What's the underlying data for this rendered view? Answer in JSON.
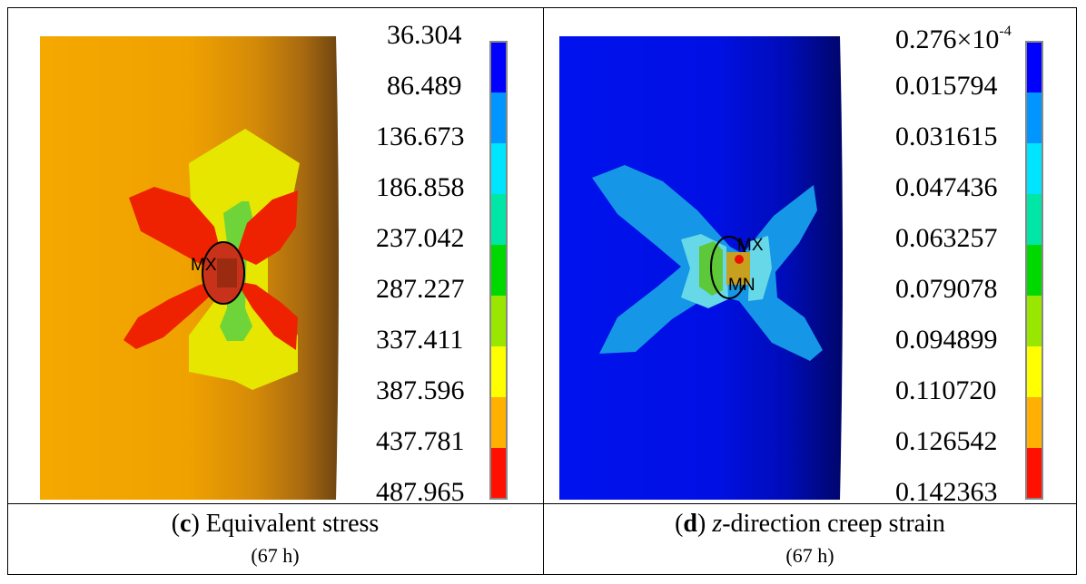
{
  "panels": [
    {
      "legend": [
        "36.304",
        "86.489",
        "136.673",
        "186.858",
        "237.042",
        "287.227",
        "337.411",
        "387.596",
        "437.781",
        "487.965"
      ],
      "legend_colors": [
        "#0000ff",
        "#0095ff",
        "#00e5ff",
        "#00e6a6",
        "#00d900",
        "#99e600",
        "#ffff00",
        "#ffb000",
        "#ff1000"
      ],
      "markers": {
        "max": "MX"
      },
      "caption_letter": "c",
      "caption_text": "Equivalent stress",
      "caption_time": "(67 h)"
    },
    {
      "legend_first_mantissa": "0.276",
      "legend_first_times": "×10",
      "legend_first_exp": "-4",
      "legend": [
        "0.015794",
        "0.031615",
        "0.047436",
        "0.063257",
        "0.079078",
        "0.094899",
        "0.110720",
        "0.126542",
        "0.142363"
      ],
      "legend_colors": [
        "#0000ff",
        "#0095ff",
        "#00e5ff",
        "#00e6a6",
        "#00d900",
        "#99e600",
        "#ffff00",
        "#ffb000",
        "#ff1000"
      ],
      "markers": {
        "max": "MX",
        "min": "MN"
      },
      "caption_letter": "d",
      "caption_var": "z",
      "caption_text": "-direction creep strain",
      "caption_time": "(67 h)"
    }
  ]
}
